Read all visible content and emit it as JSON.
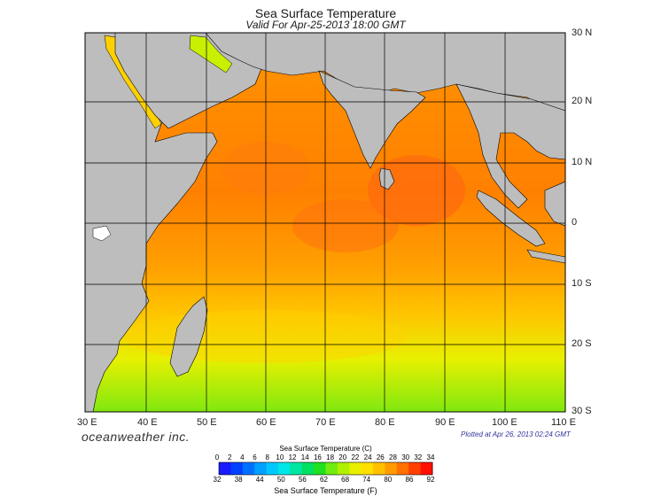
{
  "title": "Sea Surface Temperature",
  "valid": "Valid For Apr-25-2013 18:00 GMT",
  "brand": "oceanweather inc.",
  "plotted": "Plotted at Apr 26, 2013 02:24 GMT",
  "lon_labels": [
    "30 E",
    "40 E",
    "50 E",
    "60 E",
    "70 E",
    "80 E",
    "90 E",
    "100 E",
    "110 E"
  ],
  "lat_labels": [
    "30 N",
    "20 N",
    "10 N",
    "0",
    "10 S",
    "20 S",
    "30 S"
  ],
  "colorbar": {
    "title_c": "Sea Surface Temperature (C)",
    "title_f": "Sea Surface Temperature (F)",
    "celsius": [
      "0",
      "2",
      "4",
      "6",
      "8",
      "10",
      "12",
      "14",
      "16",
      "18",
      "20",
      "22",
      "24",
      "26",
      "28",
      "30",
      "32",
      "34"
    ],
    "fahrenheit": [
      "32",
      "38",
      "44",
      "50",
      "56",
      "62",
      "68",
      "74",
      "80",
      "86",
      "92"
    ],
    "colors": [
      "#1a1aff",
      "#0040ff",
      "#0070ff",
      "#00a0ff",
      "#00c8ff",
      "#00e6e6",
      "#00e6a0",
      "#00e060",
      "#20e020",
      "#70ec10",
      "#b0f000",
      "#e8f000",
      "#ffe000",
      "#ffc000",
      "#ff9a00",
      "#ff7000",
      "#ff4000",
      "#ff1000"
    ]
  },
  "colors": {
    "land": "#bdbdbd",
    "ocean_warm": "#ff8c00",
    "ocean_hot": "#ff6410",
    "ocean_mid": "#ffb400",
    "ocean_cool": "#e8f000",
    "ocean_cold": "#90ec10"
  }
}
